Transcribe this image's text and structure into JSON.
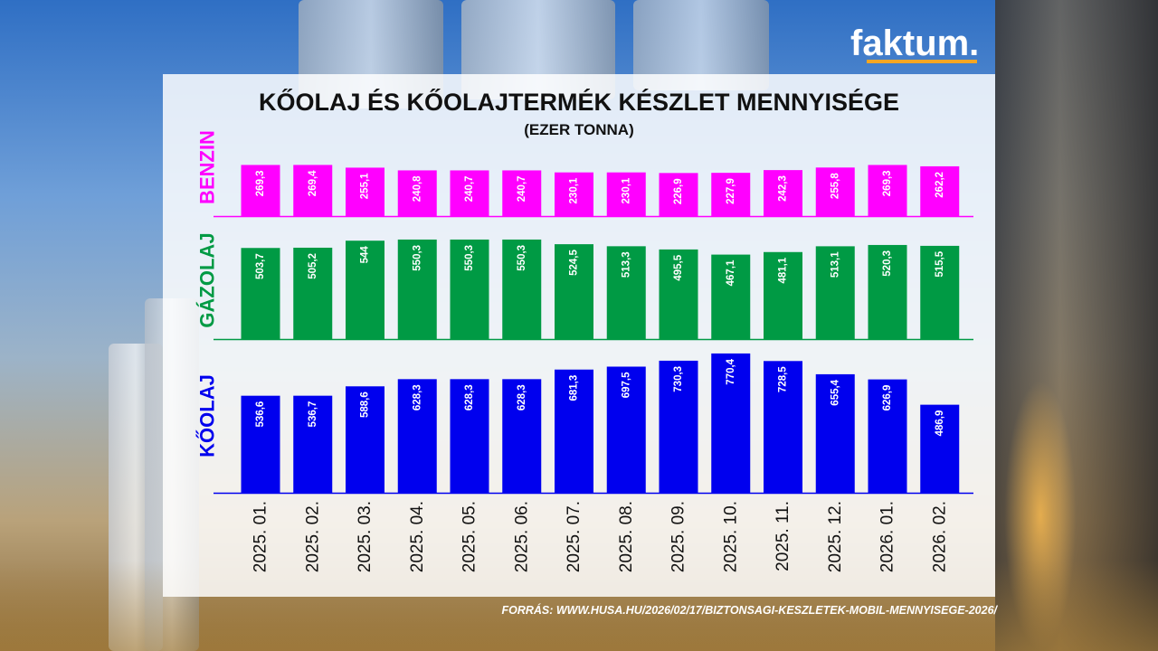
{
  "brand": {
    "logo_text": "faktum",
    "logo_dot": ".",
    "accent": "#f5a623"
  },
  "source_text": "FORRÁS: WWW.HUSA.HU/2026/02/17/BIZTONSAGI-KESZLETEK-MOBIL-MENNYISEGE-2026/",
  "chart_data": {
    "type": "bar",
    "title": "KŐOLAJ ÉS KŐOLAJTERMÉK KÉSZLET MENNYISÉGE",
    "subtitle": "(EZER TONNA)",
    "categories": [
      "2025. 01.",
      "2025. 02.",
      "2025. 03.",
      "2025. 04.",
      "2025. 05.",
      "2025. 06.",
      "2025. 07.",
      "2025. 08.",
      "2025. 09.",
      "2025. 10.",
      "2025. 11.",
      "2025. 12.",
      "2026. 01.",
      "2026. 02."
    ],
    "series": [
      {
        "name": "BENZIN",
        "color": "#ff00ff",
        "values": [
          269.3,
          269.4,
          255.1,
          240.8,
          240.7,
          240.7,
          230.1,
          230.1,
          226.9,
          227.9,
          242.3,
          255.8,
          269.3,
          262.2
        ],
        "labels": [
          "269,3",
          "269,4",
          "255,1",
          "240,8",
          "240,7",
          "240,7",
          "230,1",
          "230,1",
          "226,9",
          "227,9",
          "242,3",
          "255,8",
          "269,3",
          "262,2"
        ]
      },
      {
        "name": "GÁZOLAJ",
        "color": "#009a44",
        "values": [
          503.7,
          505.2,
          544,
          550.3,
          550.3,
          550.3,
          524.5,
          513.3,
          495.5,
          467.1,
          481.1,
          513.1,
          520.3,
          515.5
        ],
        "labels": [
          "503,7",
          "505,2",
          "544",
          "550,3",
          "550,3",
          "550,3",
          "524,5",
          "513,3",
          "495,5",
          "467,1",
          "481,1",
          "513,1",
          "520,3",
          "515,5"
        ]
      },
      {
        "name": "KŐOLAJ",
        "color": "#0000ee",
        "values": [
          536.6,
          536.7,
          588.6,
          628.3,
          628.3,
          628.3,
          681.3,
          697.5,
          730.3,
          770.4,
          728.5,
          655.4,
          626.9,
          486.9
        ],
        "labels": [
          "536,6",
          "536,7",
          "588,6",
          "628,3",
          "628,3",
          "628,3",
          "681,3",
          "697,5",
          "730,3",
          "770,4",
          "728,5",
          "655,4",
          "626,9",
          "486,9"
        ]
      }
    ],
    "legend": "left-vertical",
    "grid": false
  }
}
